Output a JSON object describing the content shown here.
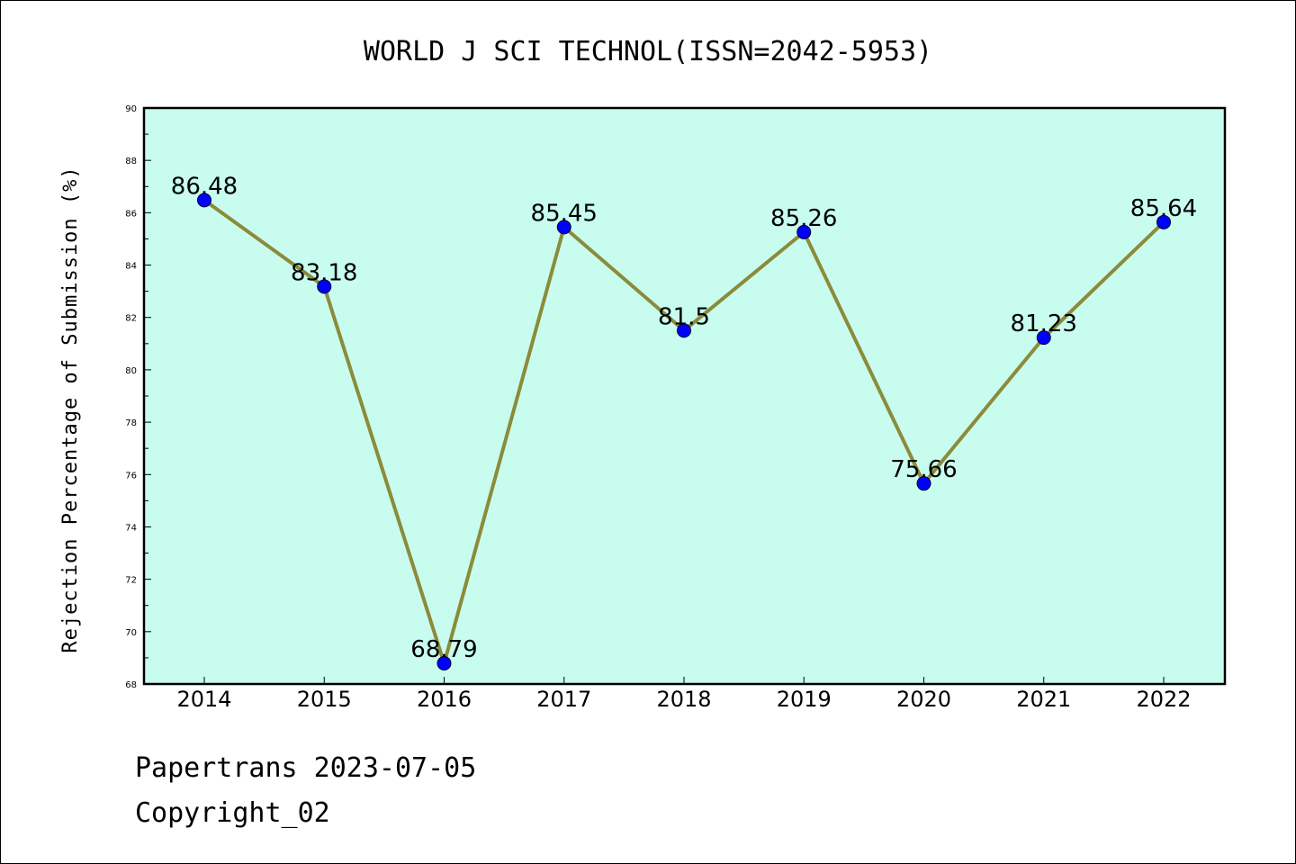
{
  "chart_data": {
    "type": "line",
    "title": "WORLD J SCI TECHNOL(ISSN=2042-5953)",
    "xlabel": "",
    "ylabel": "Rejection Percentage of Submission (%)",
    "categories": [
      "2014",
      "2015",
      "2016",
      "2017",
      "2018",
      "2019",
      "2020",
      "2021",
      "2022"
    ],
    "series": [
      {
        "values": [
          86.48,
          83.18,
          68.79,
          85.45,
          81.5,
          85.26,
          75.66,
          81.23,
          85.64
        ],
        "labels": [
          "86.48",
          "83.18",
          "68.79",
          "85.45",
          "81.5",
          "85.26",
          "75.66",
          "81.23",
          "85.64"
        ]
      }
    ],
    "ylim": [
      68,
      90
    ],
    "yticks": [
      "68",
      "70",
      "72",
      "74",
      "76",
      "78",
      "80",
      "82",
      "84",
      "86",
      "88",
      "90"
    ],
    "grid": false,
    "colors": {
      "plot_background": "#c8fcee",
      "line": "#8b8b3a",
      "marker": "#0000ff"
    }
  },
  "footer": {
    "line1": "Papertrans 2023-07-05",
    "line2": "Copyright_02"
  }
}
